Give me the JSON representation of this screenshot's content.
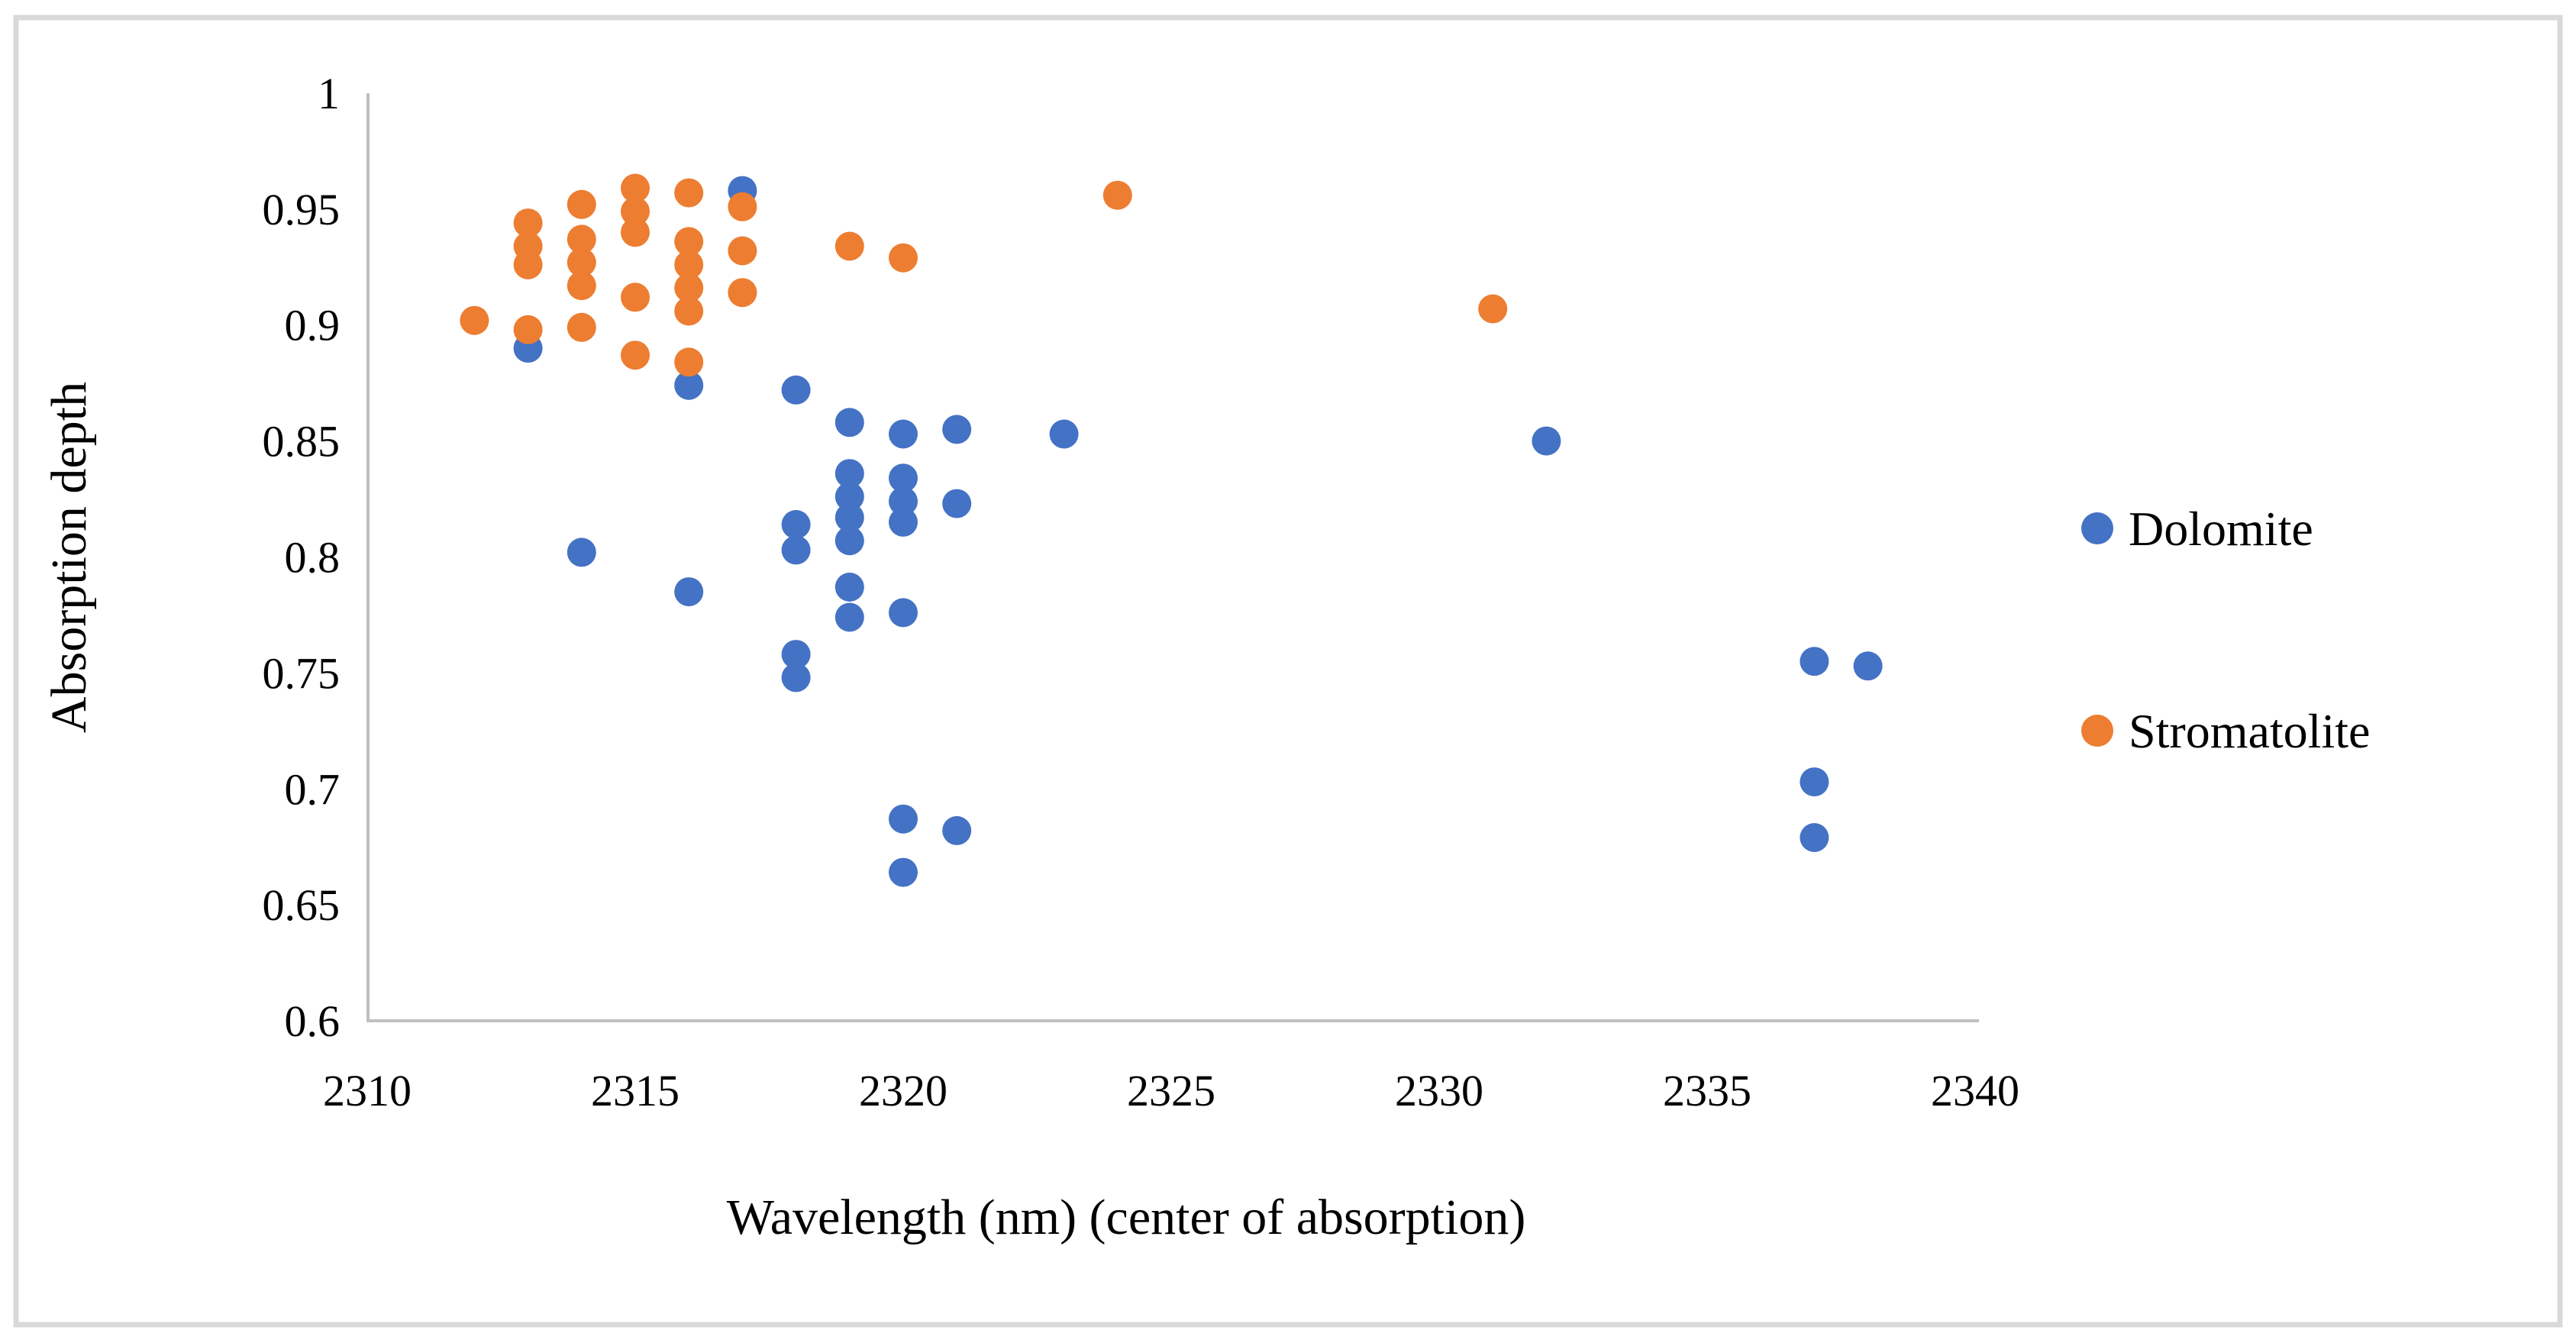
{
  "figure": {
    "background": "#FFFFFF",
    "border_color": "#D9D9D9",
    "axis_color": "#BFBFBF",
    "text_color": "#000000"
  },
  "chart_data": {
    "type": "scatter",
    "title": "",
    "xlabel": "Wavelength (nm) (center of absorption)",
    "ylabel": "Absorption depth",
    "xlim": [
      2310,
      2340
    ],
    "ylim": [
      0.6,
      1.0
    ],
    "x_ticks": [
      "2310",
      "2315",
      "2320",
      "2325",
      "2330",
      "2335",
      "2340"
    ],
    "x_tick_values": [
      2310,
      2315,
      2320,
      2325,
      2330,
      2335,
      2340
    ],
    "y_ticks": [
      "1",
      "0.95",
      "0.9",
      "0.85",
      "0.8",
      "0.75",
      "0.7",
      "0.65",
      "0.6"
    ],
    "y_tick_values": [
      1,
      0.95,
      0.9,
      0.85,
      0.8,
      0.75,
      0.7,
      0.65,
      0.6
    ],
    "grid": false,
    "legend_position": "right",
    "marker": "circle",
    "marker_radius_px": 19,
    "series": [
      {
        "name": "Dolomite",
        "color": "#4472C4",
        "points": [
          [
            2313,
            0.89
          ],
          [
            2314,
            0.802
          ],
          [
            2316,
            0.874
          ],
          [
            2316,
            0.785
          ],
          [
            2317,
            0.958
          ],
          [
            2318,
            0.872
          ],
          [
            2318,
            0.814
          ],
          [
            2318,
            0.803
          ],
          [
            2318,
            0.758
          ],
          [
            2318,
            0.748
          ],
          [
            2319,
            0.858
          ],
          [
            2319,
            0.836
          ],
          [
            2319,
            0.826
          ],
          [
            2319,
            0.817
          ],
          [
            2319,
            0.807
          ],
          [
            2319,
            0.787
          ],
          [
            2319,
            0.774
          ],
          [
            2320,
            0.853
          ],
          [
            2320,
            0.834
          ],
          [
            2320,
            0.824
          ],
          [
            2320,
            0.815
          ],
          [
            2320,
            0.776
          ],
          [
            2320,
            0.687
          ],
          [
            2320,
            0.664
          ],
          [
            2321,
            0.855
          ],
          [
            2321,
            0.823
          ],
          [
            2321,
            0.682
          ],
          [
            2323,
            0.853
          ],
          [
            2332,
            0.85
          ],
          [
            2337,
            0.755
          ],
          [
            2337,
            0.703
          ],
          [
            2337,
            0.679
          ],
          [
            2338,
            0.753
          ]
        ]
      },
      {
        "name": "Stromatolite",
        "color": "#ED7D31",
        "points": [
          [
            2312,
            0.902
          ],
          [
            2313,
            0.944
          ],
          [
            2313,
            0.934
          ],
          [
            2313,
            0.926
          ],
          [
            2313,
            0.898
          ],
          [
            2314,
            0.952
          ],
          [
            2314,
            0.937
          ],
          [
            2314,
            0.927
          ],
          [
            2314,
            0.917
          ],
          [
            2314,
            0.899
          ],
          [
            2315,
            0.959
          ],
          [
            2315,
            0.949
          ],
          [
            2315,
            0.94
          ],
          [
            2315,
            0.912
          ],
          [
            2315,
            0.887
          ],
          [
            2316,
            0.957
          ],
          [
            2316,
            0.936
          ],
          [
            2316,
            0.926
          ],
          [
            2316,
            0.916
          ],
          [
            2316,
            0.906
          ],
          [
            2316,
            0.884
          ],
          [
            2317,
            0.951
          ],
          [
            2317,
            0.932
          ],
          [
            2317,
            0.914
          ],
          [
            2319,
            0.934
          ],
          [
            2320,
            0.929
          ],
          [
            2324,
            0.956
          ],
          [
            2331,
            0.907
          ]
        ]
      }
    ]
  }
}
